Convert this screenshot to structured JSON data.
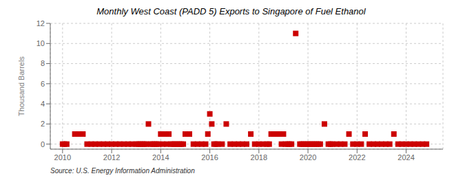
{
  "chart_data": {
    "type": "scatter",
    "title": "Monthly West Coast (PADD 5) Exports to Singapore of Fuel Ethanol",
    "ylabel": "Thousand Barrels",
    "annotations": [
      "Source: U.S. Energy Information Administration"
    ],
    "color": "#cc0000",
    "marker": "square",
    "grid": true,
    "xlim": [
      2009.5,
      2025.5
    ],
    "xticks": [
      2010,
      2012,
      2014,
      2016,
      2018,
      2020,
      2022,
      2024
    ],
    "ylim": [
      -0.5,
      12
    ],
    "yticks": [
      0,
      2,
      4,
      6,
      8,
      10,
      12
    ],
    "x": [
      2010.0,
      2010.08,
      2010.17,
      2010.5,
      2010.67,
      2010.83,
      2011.0,
      2011.17,
      2011.33,
      2011.5,
      2011.67,
      2011.83,
      2012.0,
      2012.17,
      2012.33,
      2012.5,
      2012.67,
      2012.83,
      2013.0,
      2013.08,
      2013.17,
      2013.25,
      2013.33,
      2013.42,
      2013.5,
      2013.58,
      2013.67,
      2013.75,
      2013.83,
      2013.92,
      2014.0,
      2014.08,
      2014.17,
      2014.25,
      2014.33,
      2014.42,
      2014.5,
      2014.58,
      2014.67,
      2014.75,
      2014.83,
      2014.92,
      2015.0,
      2015.17,
      2015.33,
      2015.5,
      2015.67,
      2015.83,
      2015.92,
      2016.0,
      2016.08,
      2016.17,
      2016.25,
      2016.33,
      2016.5,
      2016.67,
      2016.83,
      2017.0,
      2017.17,
      2017.33,
      2017.5,
      2017.67,
      2017.83,
      2018.0,
      2018.17,
      2018.33,
      2018.42,
      2018.5,
      2018.58,
      2018.67,
      2018.75,
      2018.83,
      2018.92,
      2019.0,
      2019.08,
      2019.17,
      2019.25,
      2019.33,
      2019.5,
      2019.67,
      2019.75,
      2019.83,
      2019.92,
      2020.0,
      2020.08,
      2020.17,
      2020.25,
      2020.33,
      2020.42,
      2020.5,
      2020.67,
      2020.83,
      2020.92,
      2021.0,
      2021.17,
      2021.33,
      2021.5,
      2021.67,
      2021.83,
      2022.0,
      2022.17,
      2022.33,
      2022.5,
      2022.67,
      2022.83,
      2023.0,
      2023.17,
      2023.33,
      2023.5,
      2023.67,
      2023.83,
      2024.0,
      2024.17,
      2024.33,
      2024.5,
      2024.67,
      2024.83
    ],
    "values": [
      0.0,
      0.0,
      0.0,
      1.0,
      1.0,
      1.0,
      0.0,
      0.0,
      0.0,
      0.0,
      0.0,
      0.0,
      0.0,
      0.0,
      0.0,
      0.0,
      0.0,
      0.0,
      0.0,
      0.0,
      0.0,
      0.0,
      0.0,
      0.0,
      2.0,
      0.0,
      0.0,
      0.0,
      0.0,
      0.0,
      1.0,
      0.0,
      1.0,
      0.0,
      1.0,
      0.0,
      0.0,
      0.0,
      0.0,
      0.0,
      0.0,
      0.0,
      1.0,
      1.0,
      0.0,
      0.0,
      0.0,
      0.0,
      1.0,
      3.0,
      2.0,
      0.0,
      0.0,
      0.0,
      0.0,
      2.0,
      0.0,
      0.0,
      0.0,
      0.0,
      0.0,
      1.0,
      0.0,
      0.0,
      0.0,
      0.0,
      0.0,
      1.0,
      1.0,
      1.0,
      1.0,
      1.0,
      0.0,
      1.0,
      0.0,
      0.0,
      0.0,
      0.0,
      11.0,
      0.0,
      0.0,
      0.0,
      0.0,
      0.0,
      0.0,
      0.0,
      0.0,
      0.0,
      0.0,
      0.0,
      2.0,
      0.0,
      0.0,
      0.0,
      0.0,
      0.0,
      0.0,
      1.0,
      0.0,
      0.0,
      0.0,
      1.0,
      0.0,
      0.0,
      0.0,
      0.0,
      0.0,
      0.0,
      1.0,
      0.0,
      0.0,
      0.0,
      0.0,
      0.0,
      0.0,
      0.0,
      0.0
    ]
  }
}
